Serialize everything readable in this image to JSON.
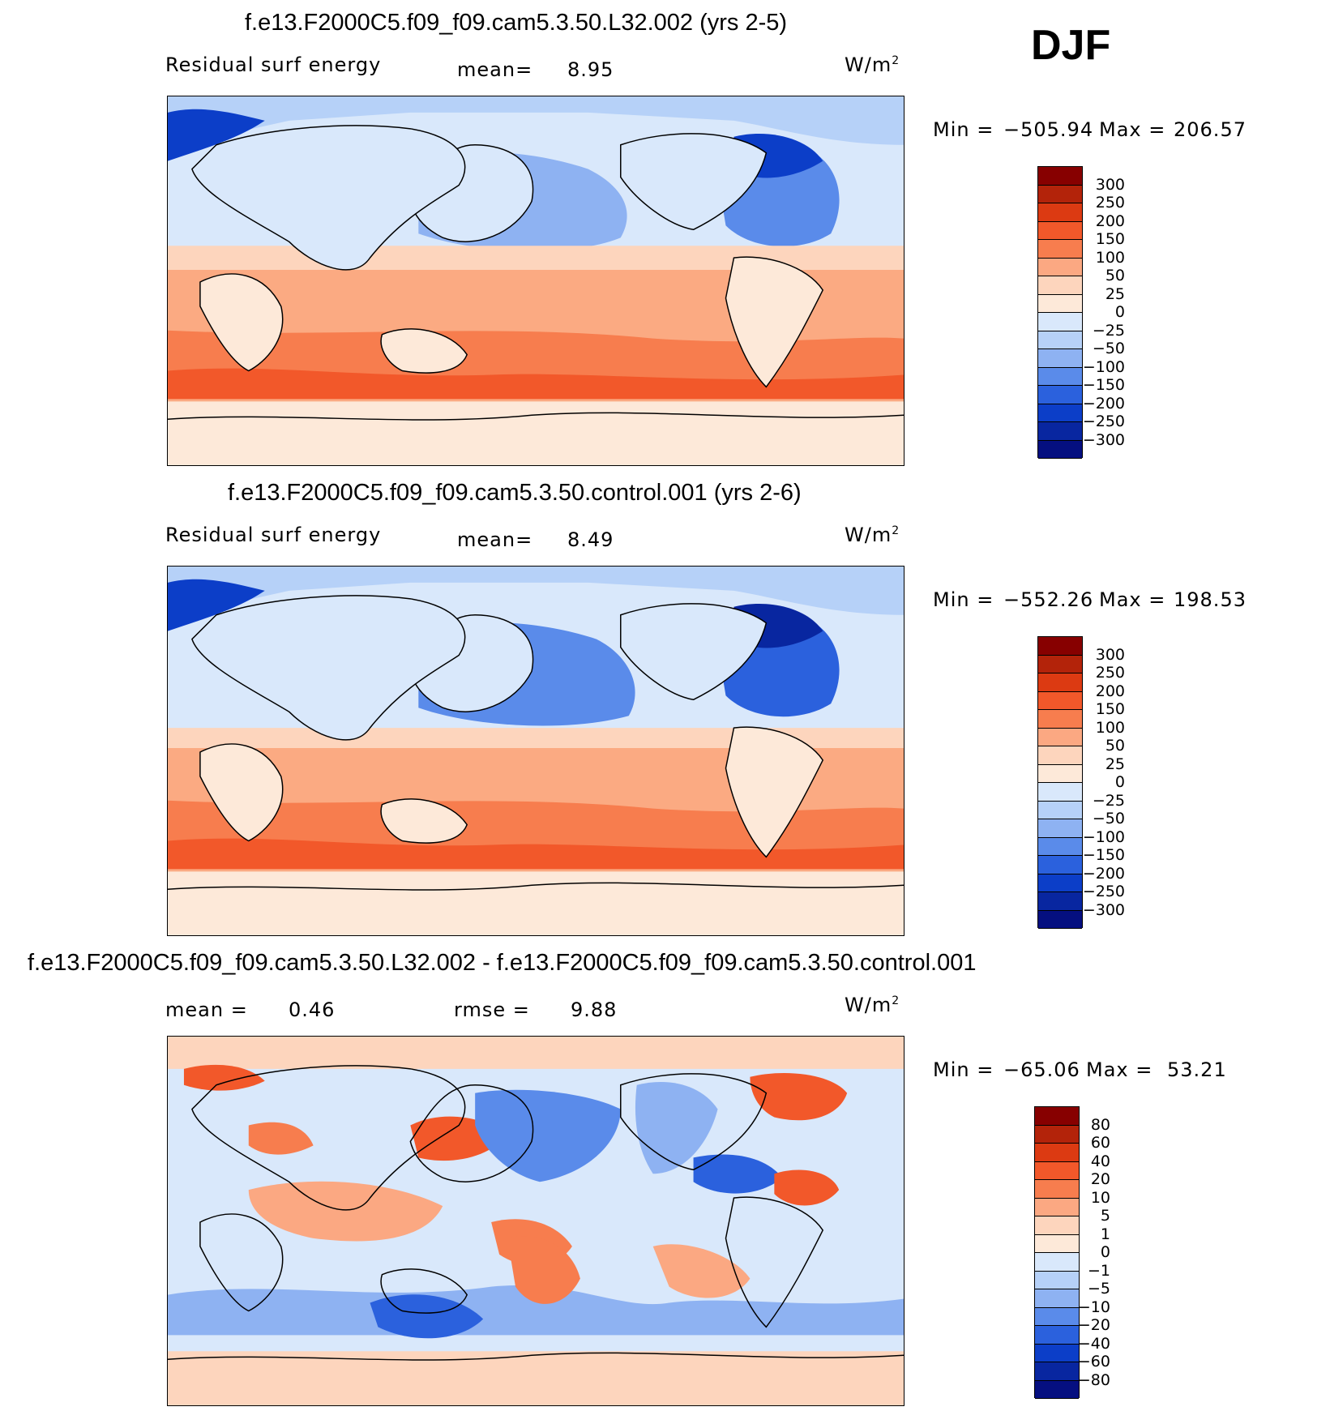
{
  "season": "DJF",
  "chart_data": [
    {
      "type": "heatmap",
      "title": "f.e13.F2000C5.f09_f09.cam5.3.50.L32.002 (yrs 2-5)",
      "variable": "Residual surf energy",
      "mean_label": "mean=",
      "mean": "8.95",
      "units_base": "W/m",
      "units_exp": "2",
      "min_label": "Min =",
      "min": "−505.94",
      "max_label": "Max =",
      "max": "206.57",
      "colorbar": {
        "levels": [
          "300",
          "250",
          "200",
          "150",
          "100",
          "50",
          "25",
          "0",
          "−25",
          "−50",
          "−100",
          "−150",
          "−200",
          "−250",
          "−300"
        ],
        "colors": [
          "#870000",
          "#b3230a",
          "#dc3a12",
          "#f2582a",
          "#f77d4e",
          "#fba882",
          "#fdd5bd",
          "#fde9d9",
          "#d9e8fb",
          "#b6d1f8",
          "#8eb2f2",
          "#5a8bea",
          "#2b61dd",
          "#0c3ec8",
          "#0826a0",
          "#050f80"
        ]
      }
    },
    {
      "type": "heatmap",
      "title": "f.e13.F2000C5.f09_f09.cam5.3.50.control.001 (yrs 2-6)",
      "variable": "Residual surf energy",
      "mean_label": "mean=",
      "mean": "8.49",
      "units_base": "W/m",
      "units_exp": "2",
      "min_label": "Min =",
      "min": "−552.26",
      "max_label": "Max =",
      "max": "198.53",
      "colorbar": {
        "levels": [
          "300",
          "250",
          "200",
          "150",
          "100",
          "50",
          "25",
          "0",
          "−25",
          "−50",
          "−100",
          "−150",
          "−200",
          "−250",
          "−300"
        ],
        "colors": [
          "#870000",
          "#b3230a",
          "#dc3a12",
          "#f2582a",
          "#f77d4e",
          "#fba882",
          "#fdd5bd",
          "#fde9d9",
          "#d9e8fb",
          "#b6d1f8",
          "#8eb2f2",
          "#5a8bea",
          "#2b61dd",
          "#0c3ec8",
          "#0826a0",
          "#050f80"
        ]
      }
    },
    {
      "type": "heatmap",
      "title": "f.e13.F2000C5.f09_f09.cam5.3.50.L32.002 - f.e13.F2000C5.f09_f09.cam5.3.50.control.001",
      "mean_label": "mean =",
      "mean": "0.46",
      "rmse_label": "rmse =",
      "rmse": "9.88",
      "units_base": "W/m",
      "units_exp": "2",
      "min_label": "Min =",
      "min": "−65.06",
      "max_label": "Max =",
      "max": "53.21",
      "colorbar": {
        "levels": [
          "80",
          "60",
          "40",
          "20",
          "10",
          "5",
          "1",
          "0",
          "−1",
          "−5",
          "−10",
          "−20",
          "−40",
          "−60",
          "−80"
        ],
        "colors": [
          "#870000",
          "#b3230a",
          "#dc3a12",
          "#f2582a",
          "#f77d4e",
          "#fba882",
          "#fdd5bd",
          "#fde9d9",
          "#d9e8fb",
          "#b6d1f8",
          "#8eb2f2",
          "#5a8bea",
          "#2b61dd",
          "#0c3ec8",
          "#0826a0",
          "#050f80"
        ]
      }
    }
  ]
}
